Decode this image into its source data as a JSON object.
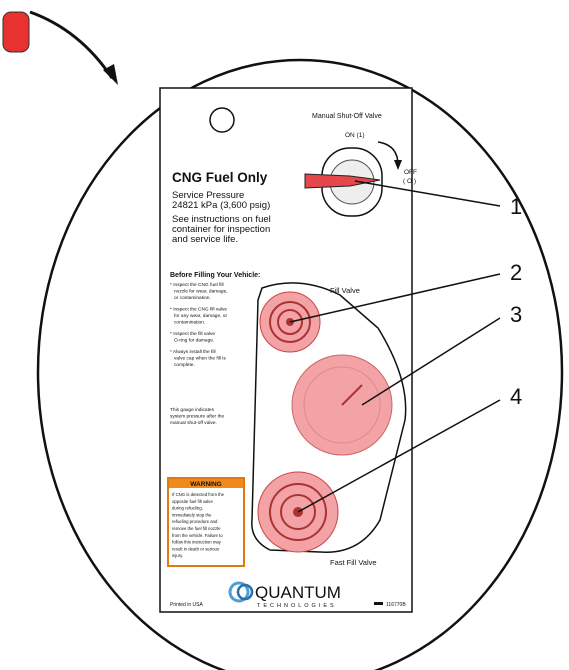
{
  "valve_label": "Manual Shut-Off Valve",
  "on_label": "ON (1)",
  "off_label": [
    "OFF",
    "( O )"
  ],
  "title": "CNG Fuel Only",
  "service": [
    "Service Pressure",
    "24821 kPa (3,600 psig)"
  ],
  "instructions": [
    "See instructions on fuel",
    "container for inspection",
    "and service life."
  ],
  "before_heading": "Before Filling Your Vehicle:",
  "bullets": [
    [
      "* Inspect the CNG fuel fill",
      "nozzle for wear, damage,",
      "or contamination."
    ],
    [
      "* Inspect the CNG fill valve",
      "for any wear, damage, or",
      "contamination."
    ],
    [
      "* Inspect the fill valve",
      "O-ring for damage."
    ],
    [
      "* Always install the fill",
      "valve cap when the fill is",
      "complete."
    ]
  ],
  "gauge_note": [
    "This gauge indicates",
    "system pressure after the",
    "manual shut-off valve."
  ],
  "warning_title": "WARNING",
  "warning_text": [
    "If CNG is detected from the",
    "opposite fuel fill valve",
    "during refueling,",
    "immediately stop the",
    "refueling procedure and",
    "remove the fuel fill nozzle",
    "from the vehicle. Failure to",
    "follow this instruction may",
    "result in death or serious",
    "injury."
  ],
  "fill_valve": "Fill Valve",
  "fast_fill_valve": "Fast Fill Valve",
  "brand": "QUANTUM",
  "brand_sub": "TECHNOLOGIES",
  "printed": "Printed in USA",
  "part_number": "116770B",
  "callouts": [
    "1",
    "2",
    "3",
    "4"
  ]
}
